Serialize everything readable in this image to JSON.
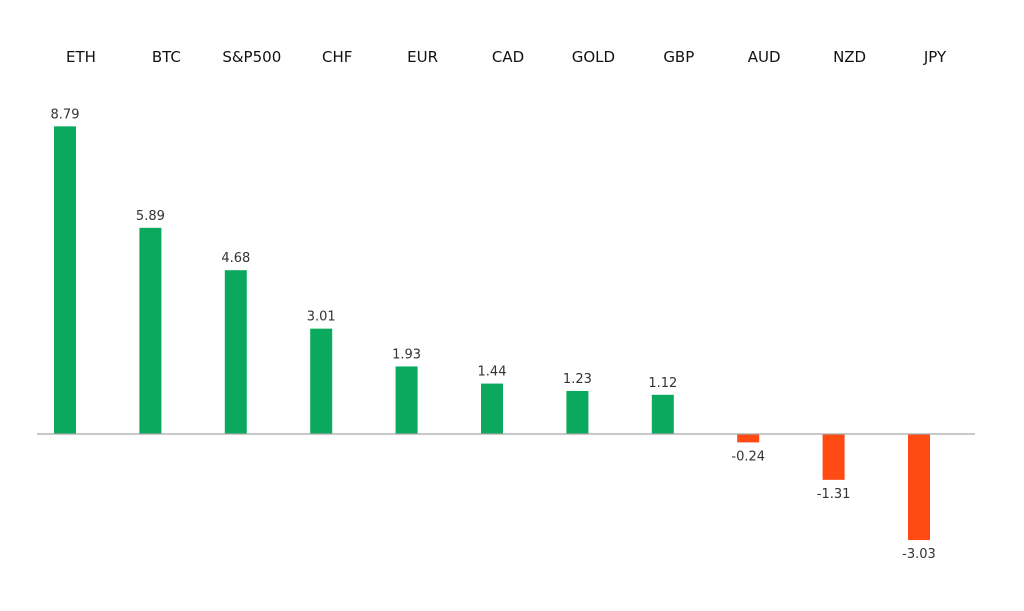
{
  "chart_data": {
    "type": "bar",
    "categories": [
      "ETH",
      "BTC",
      "S&P500",
      "CHF",
      "EUR",
      "CAD",
      "GOLD",
      "GBP",
      "AUD",
      "NZD",
      "JPY"
    ],
    "values": [
      8.79,
      5.89,
      4.68,
      3.01,
      1.93,
      1.44,
      1.23,
      1.12,
      -0.24,
      -1.31,
      -3.03
    ],
    "value_labels": [
      "8.79",
      "5.89",
      "4.68",
      "3.01",
      "1.93",
      "1.44",
      "1.23",
      "1.12",
      "-0.24",
      "-1.31",
      "-3.03"
    ],
    "title": "",
    "xlabel": "",
    "ylabel": "",
    "category_label_position": "top",
    "grid": false,
    "colors": {
      "positive": "#0aa95e",
      "negative": "#ff4a14",
      "axis": "#a6a6a6"
    }
  }
}
